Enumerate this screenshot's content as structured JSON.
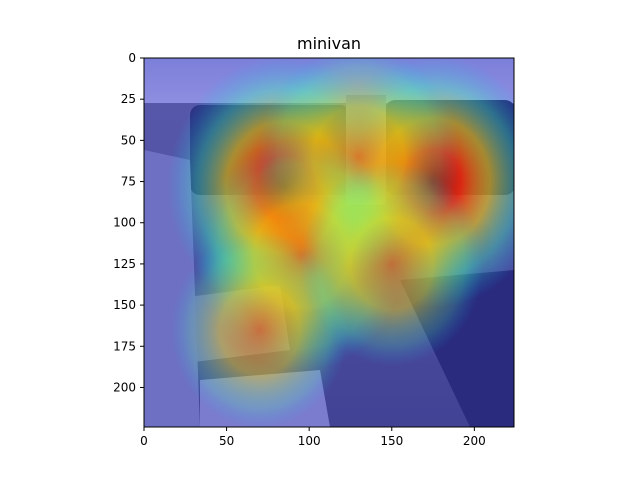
{
  "figure": {
    "title": "minivan"
  },
  "chart_data": {
    "type": "heatmap",
    "title": "minivan",
    "xlabel": "",
    "ylabel": "",
    "xlim": [
      0,
      224
    ],
    "ylim": [
      224,
      0
    ],
    "x_ticks": [
      0,
      50,
      100,
      150,
      200
    ],
    "y_ticks": [
      0,
      25,
      50,
      75,
      100,
      125,
      150,
      175,
      200
    ],
    "grid": false,
    "colormap": "jet",
    "hotspots": [
      {
        "x": 85,
        "y": 78,
        "intensity": 1.0
      },
      {
        "x": 175,
        "y": 75,
        "intensity": 0.95
      },
      {
        "x": 130,
        "y": 60,
        "intensity": 0.75
      },
      {
        "x": 95,
        "y": 120,
        "intensity": 0.8
      },
      {
        "x": 70,
        "y": 165,
        "intensity": 0.55
      },
      {
        "x": 150,
        "y": 125,
        "intensity": 0.6
      }
    ]
  }
}
